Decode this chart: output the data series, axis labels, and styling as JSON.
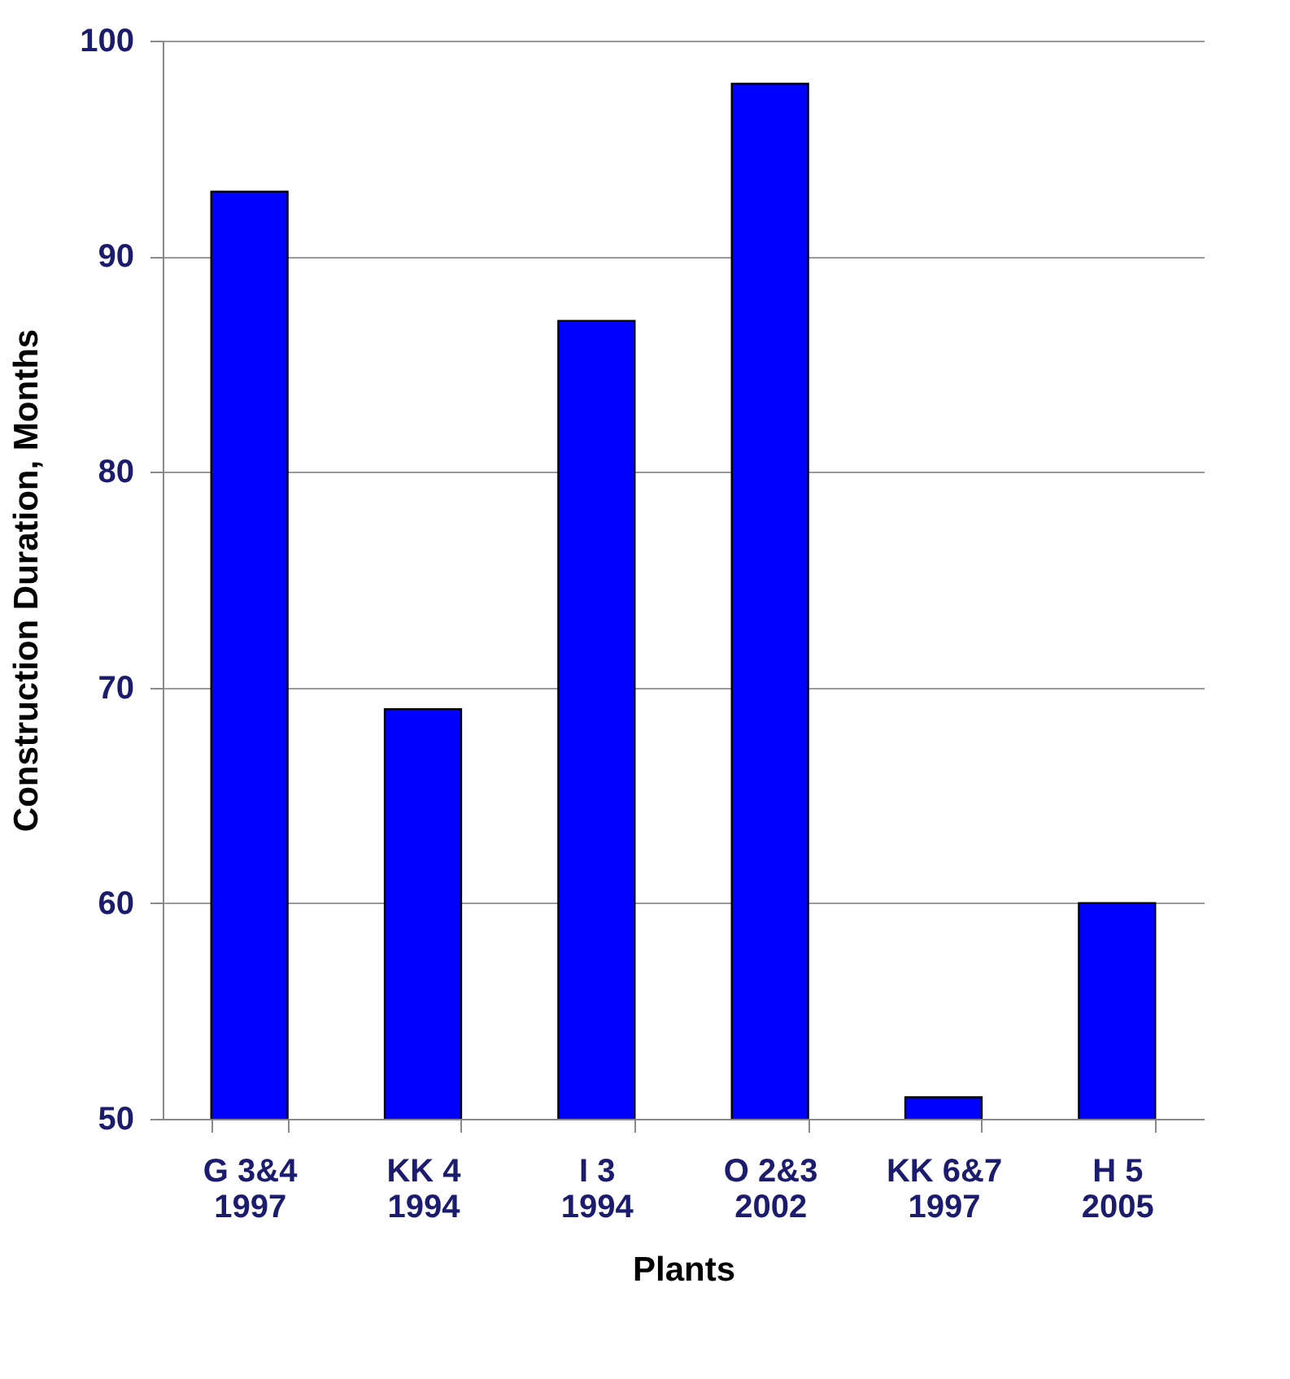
{
  "chart_data": {
    "type": "bar",
    "xlabel": "Plants",
    "ylabel": "Construction Duration, Months",
    "categories": [
      "G 3&4\n1997",
      "KK 4\n1994",
      "I 3\n1994",
      "O 2&3\n2002",
      "KK 6&7\n1997",
      "H 5\n2005"
    ],
    "values": [
      93,
      69,
      87,
      98,
      51,
      60
    ],
    "color": "#0000ff",
    "ylim": [
      50,
      100
    ],
    "yticks": [
      50,
      60,
      70,
      80,
      90,
      100
    ],
    "grid": "y"
  }
}
